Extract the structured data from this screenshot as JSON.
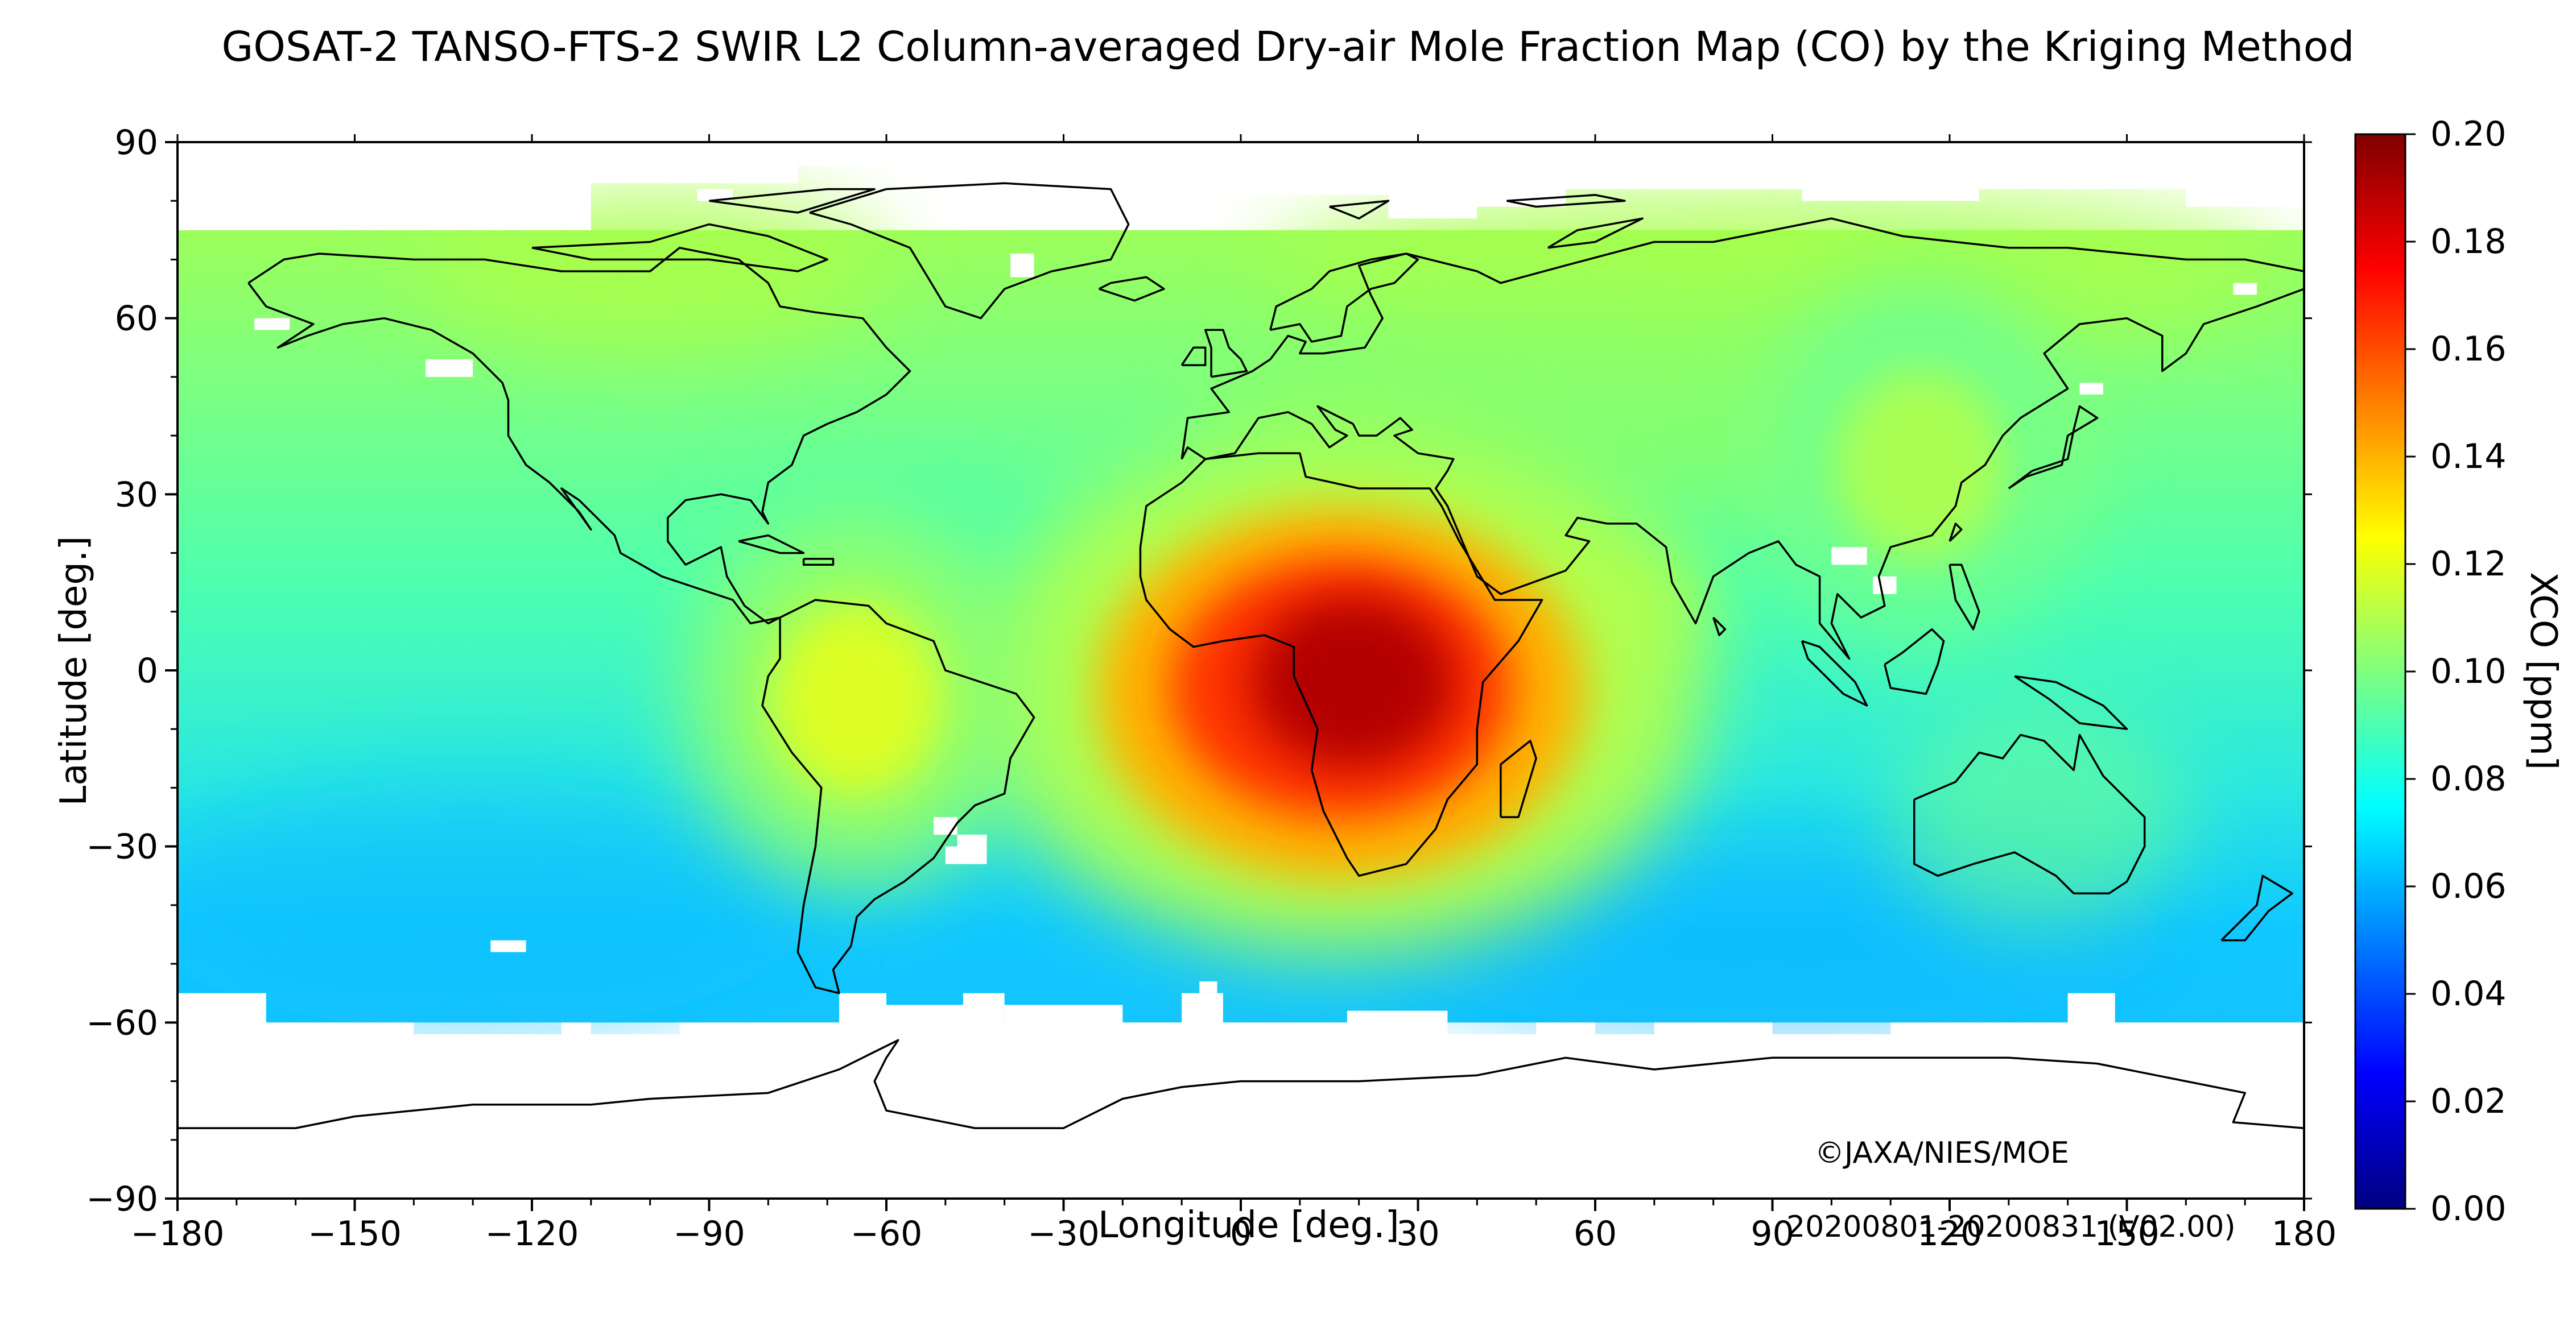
{
  "title": "GOSAT-2 TANSO-FTS-2 SWIR L2 Column-averaged Dry-air Mole Fraction Map (CO) by the Kriging Method",
  "credit": "©JAXA/NIES/MOE",
  "period": "20200801-20200831 (V02.00)",
  "axes": {
    "xlabel": "Longitude [deg.]",
    "ylabel": "Latitude [deg.]",
    "xlim": [
      -180,
      180
    ],
    "ylim": [
      -90,
      90
    ],
    "xticks": [
      -180,
      -150,
      -120,
      -90,
      -60,
      -30,
      0,
      30,
      60,
      90,
      120,
      150,
      180
    ],
    "yticks": [
      90,
      60,
      30,
      0,
      -30,
      -60,
      -90
    ],
    "xtick_labels": [
      "−180",
      "−150",
      "−120",
      "−90",
      "−60",
      "−30",
      "0",
      "30",
      "60",
      "90",
      "120",
      "150",
      "180"
    ],
    "ytick_labels": [
      "90",
      "60",
      "30",
      "0",
      "−30",
      "−60",
      "−90"
    ]
  },
  "colorbar": {
    "label": "XCO [ppm]",
    "range": [
      0.0,
      0.2
    ],
    "ticks": [
      "0.00",
      "0.02",
      "0.04",
      "0.06",
      "0.08",
      "0.10",
      "0.12",
      "0.14",
      "0.16",
      "0.18",
      "0.20"
    ],
    "colormap": "jet",
    "colors": [
      "#00007f",
      "#0000ff",
      "#007fff",
      "#00ffff",
      "#7fff7f",
      "#ffff00",
      "#ff7f00",
      "#ff0000",
      "#7f0000"
    ]
  },
  "map": {
    "projection": "equirectangular",
    "background": "#00c8ff",
    "data_lat_range": [
      -60,
      75
    ],
    "hotspots": [
      {
        "region": "Central Africa",
        "lon": 17,
        "lat": -2,
        "peak": 0.19
      },
      {
        "region": "Amazon",
        "lon": -65,
        "lat": -5,
        "peak": 0.12
      },
      {
        "region": "East Asia",
        "lon": 115,
        "lat": 35,
        "peak": 0.11
      }
    ]
  }
}
